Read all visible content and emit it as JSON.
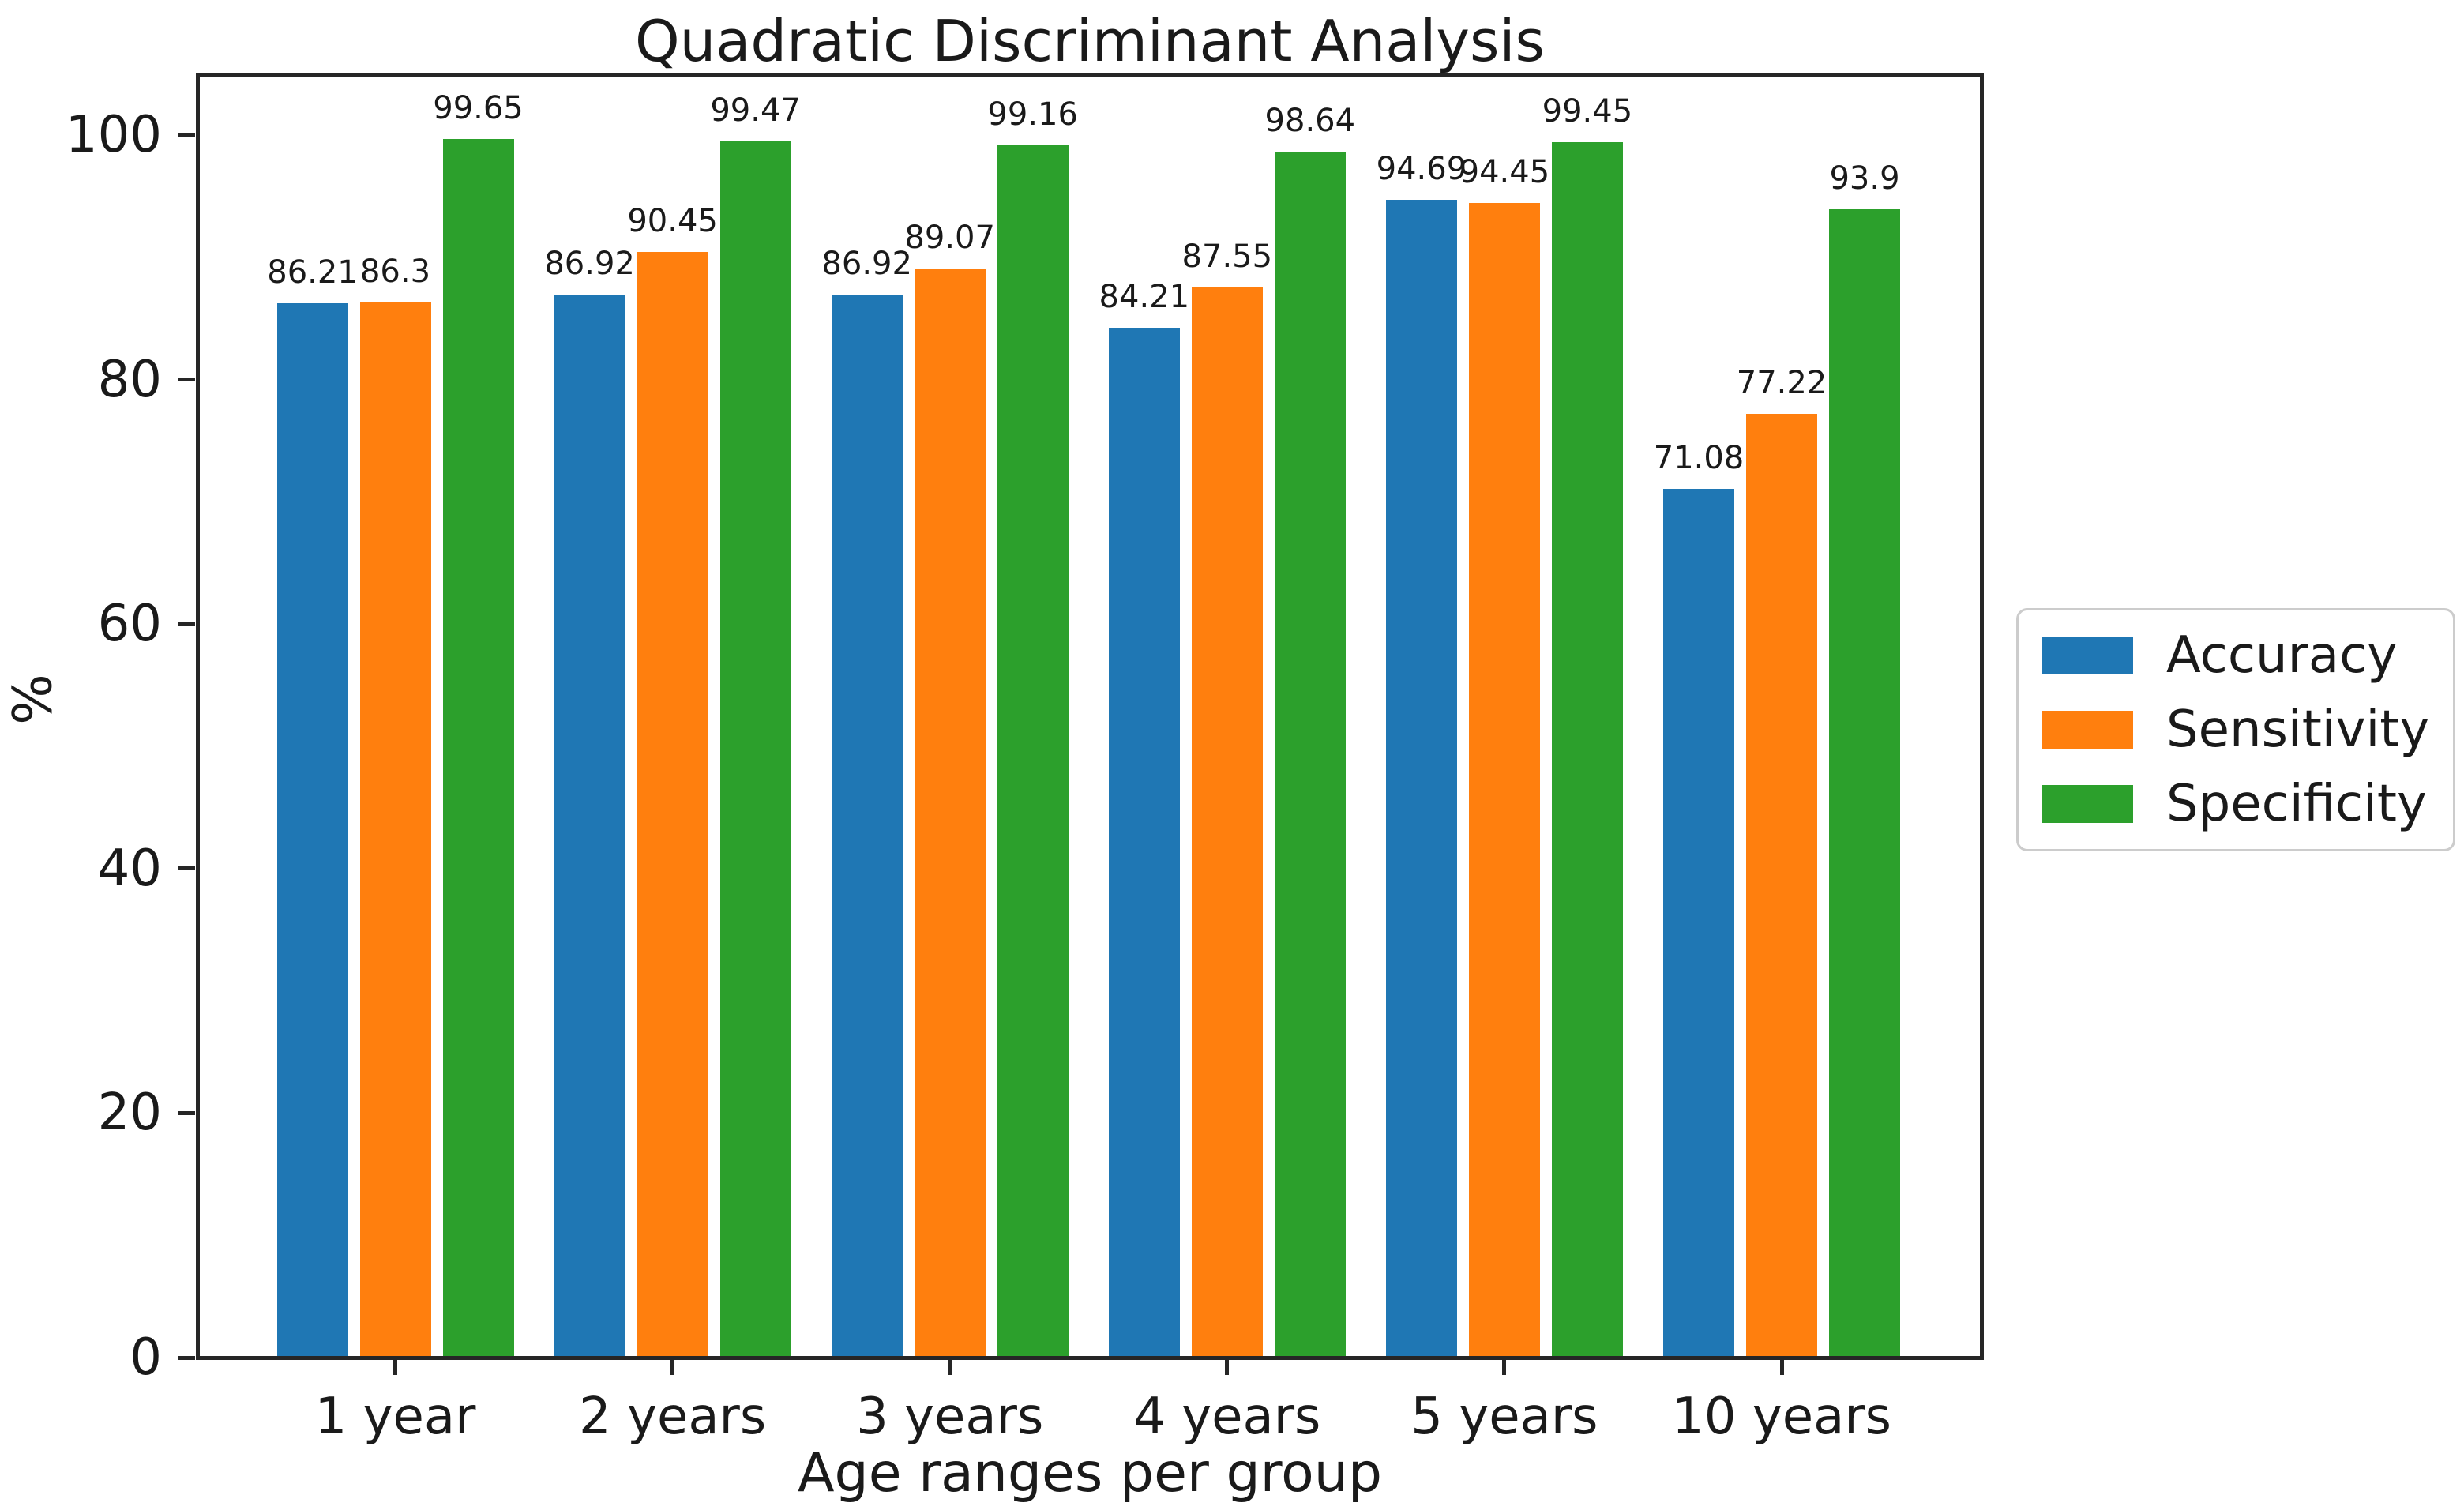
{
  "chart_data": {
    "type": "bar",
    "title": "Quadratic Discriminant Analysis",
    "xlabel": "Age ranges per group",
    "ylabel": "%",
    "categories": [
      "1 year",
      "2 years",
      "3 years",
      "4 years",
      "5 years",
      "10 years"
    ],
    "series": [
      {
        "name": "Accuracy",
        "color": "#1f77b4",
        "values": [
          86.21,
          86.92,
          86.92,
          84.21,
          94.69,
          71.08
        ]
      },
      {
        "name": "Sensitivity",
        "color": "#ff7f0e",
        "values": [
          86.3,
          90.45,
          89.07,
          87.55,
          94.45,
          77.22
        ]
      },
      {
        "name": "Specificity",
        "color": "#2ca02c",
        "values": [
          99.65,
          99.47,
          99.16,
          98.64,
          99.45,
          93.9
        ]
      }
    ],
    "bar_value_labels": [
      [
        "86.21",
        "86.92",
        "86.92",
        "84.21",
        "94.69",
        "71.08"
      ],
      [
        "86.3",
        "90.45",
        "89.07",
        "87.55",
        "94.45",
        "77.22"
      ],
      [
        "99.65",
        "99.47",
        "99.16",
        "98.64",
        "99.45",
        "93.9"
      ]
    ],
    "yticks": [
      0,
      20,
      40,
      60,
      80,
      100
    ],
    "ylim": [
      0,
      105
    ],
    "grid": false,
    "legend_position": "outside-right",
    "colors": {
      "axis": "#262626",
      "text": "#1a1a1a",
      "background": "#ffffff",
      "legend_border": "#cccccc"
    }
  }
}
